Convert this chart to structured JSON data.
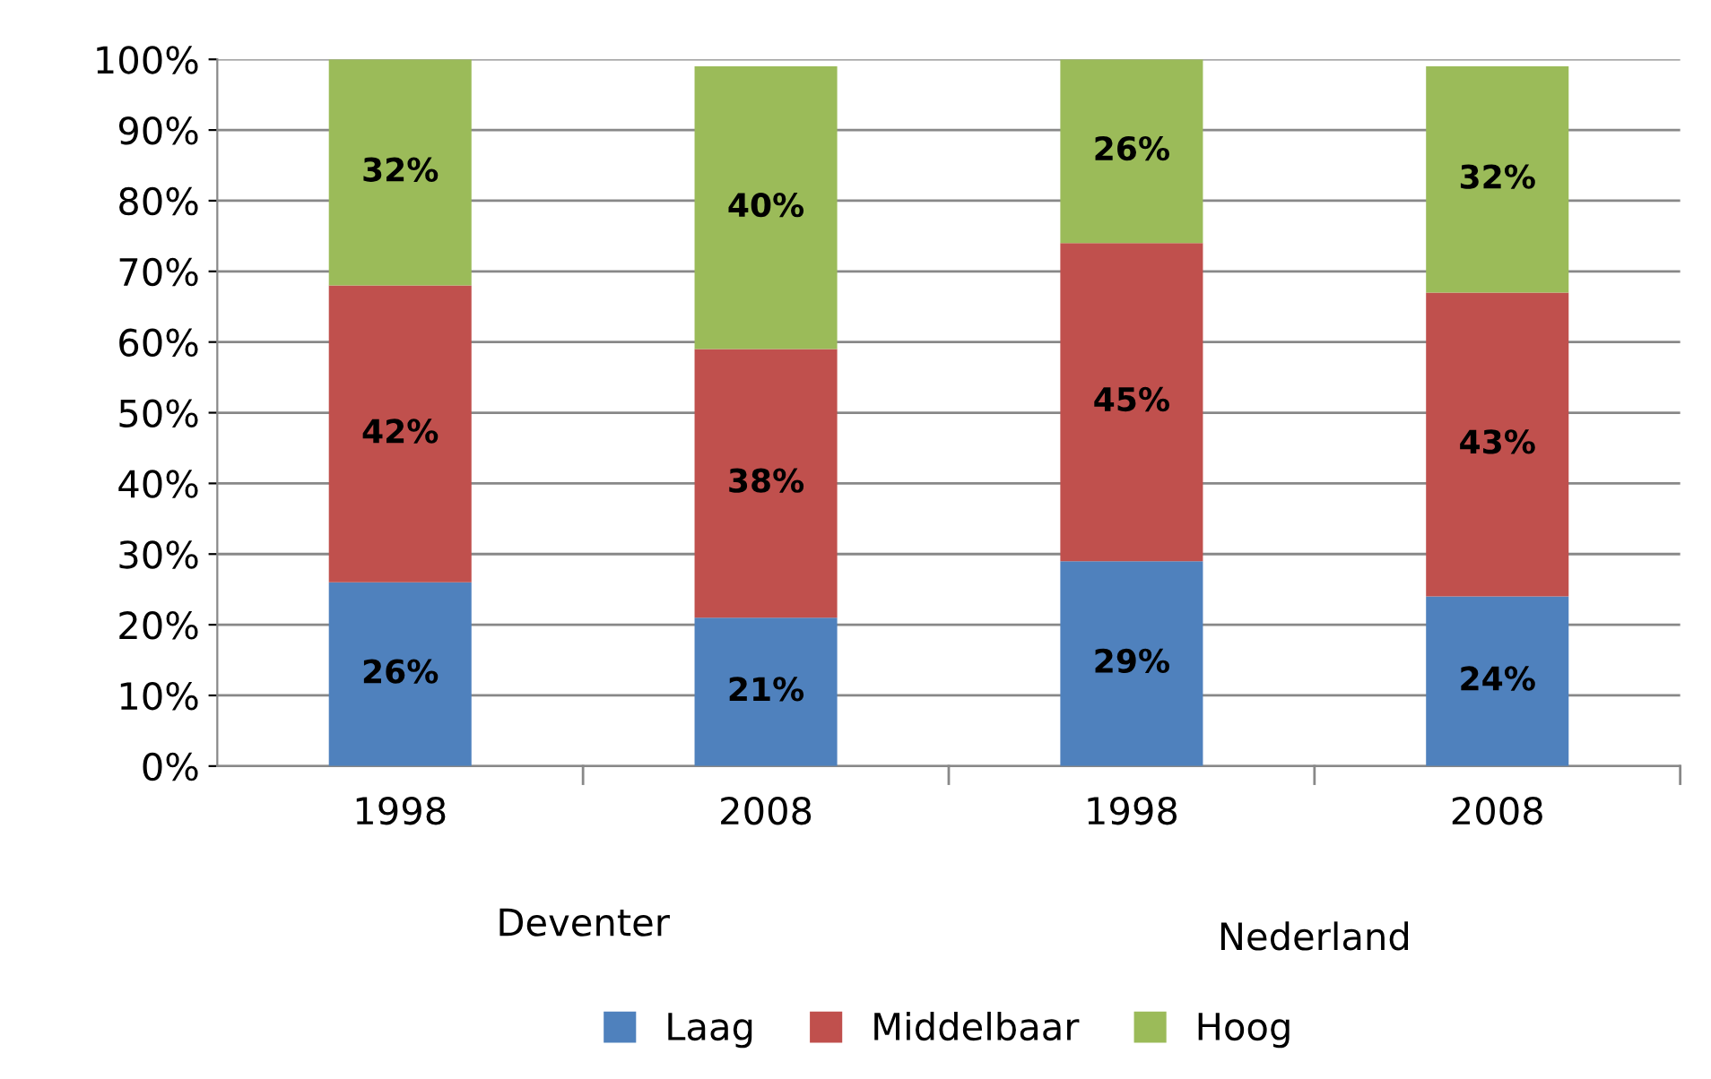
{
  "chart_data": {
    "type": "bar",
    "stacked": true,
    "categories": [
      "1998",
      "2008",
      "1998",
      "2008"
    ],
    "series": [
      {
        "name": "Laag",
        "color": "#4f81bd",
        "values": [
          26,
          21,
          29,
          24
        ],
        "value_labels": [
          "26%",
          "21%",
          "29%",
          "24%"
        ]
      },
      {
        "name": "Middelbaar",
        "color": "#c0504d",
        "values": [
          42,
          38,
          45,
          43
        ],
        "value_labels": [
          "42%",
          "38%",
          "45%",
          "43%"
        ]
      },
      {
        "name": "Hoog",
        "color": "#9bbb59",
        "values": [
          32,
          40,
          26,
          32
        ],
        "value_labels": [
          "32%",
          "40%",
          "26%",
          "32%"
        ]
      }
    ],
    "annotations": [
      "Deventer",
      "Nederland"
    ],
    "ylim": [
      0,
      100
    ],
    "yticks": [
      {
        "value": 0,
        "label": "0%"
      },
      {
        "value": 10,
        "label": "10%"
      },
      {
        "value": 20,
        "label": "20%"
      },
      {
        "value": 30,
        "label": "30%"
      },
      {
        "value": 40,
        "label": "40%"
      },
      {
        "value": 50,
        "label": "50%"
      },
      {
        "value": 60,
        "label": "60%"
      },
      {
        "value": 70,
        "label": "70%"
      },
      {
        "value": 80,
        "label": "80%"
      },
      {
        "value": 90,
        "label": "90%"
      },
      {
        "value": 100,
        "label": "100%"
      }
    ],
    "grid": "y",
    "legend": "bottom"
  }
}
